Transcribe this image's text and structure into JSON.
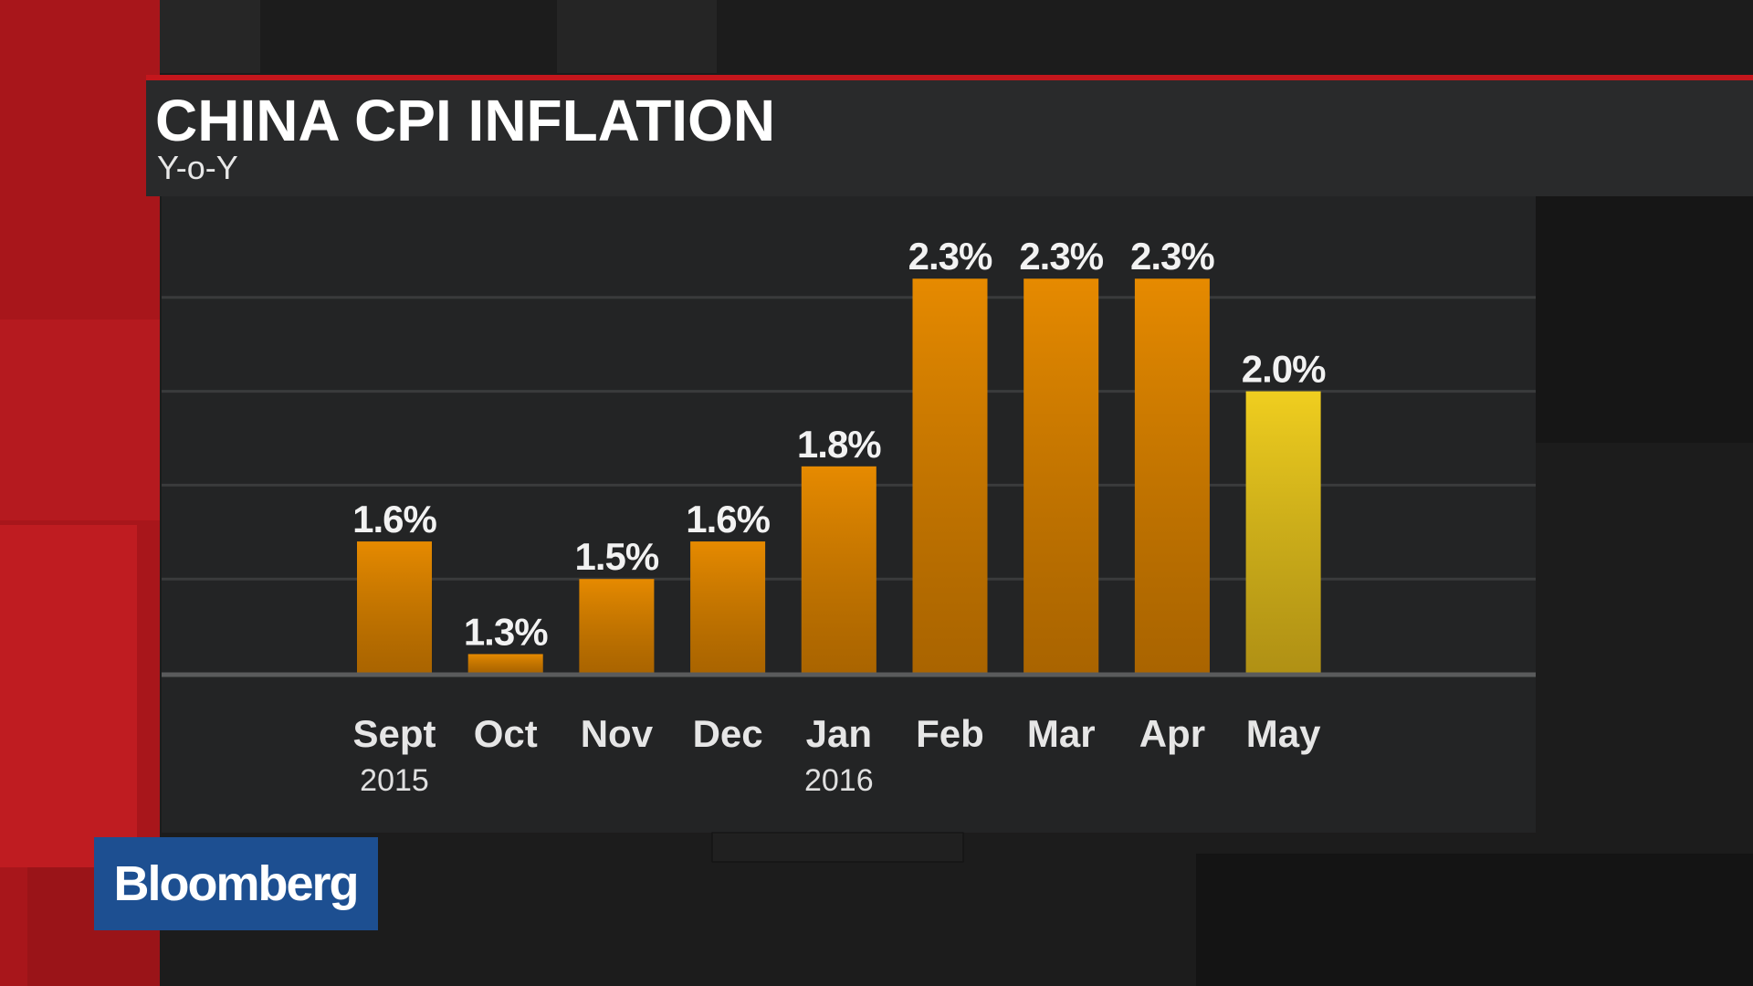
{
  "chart_data": {
    "type": "bar",
    "title": "CHINA CPI INFLATION",
    "subtitle": "Y-o-Y",
    "categories": [
      "Sept",
      "Oct",
      "Nov",
      "Dec",
      "Jan",
      "Feb",
      "Mar",
      "Apr",
      "May"
    ],
    "sublabels": [
      "2015",
      null,
      null,
      null,
      "2016",
      null,
      null,
      null,
      null
    ],
    "values": [
      1.6,
      1.3,
      1.5,
      1.6,
      1.8,
      2.3,
      2.3,
      2.3,
      2.0
    ],
    "value_labels": [
      "1.6%",
      "1.3%",
      "1.5%",
      "1.6%",
      "1.8%",
      "2.3%",
      "2.3%",
      "2.3%",
      "2.0%"
    ],
    "colors": [
      "#e68a00",
      "#e68a00",
      "#e68a00",
      "#e68a00",
      "#e68a00",
      "#e68a00",
      "#e68a00",
      "#e68a00",
      "#f0ce1f"
    ],
    "ylim": [
      1.25,
      2.5
    ],
    "yticks": [
      1.5,
      1.75,
      2.0,
      2.25
    ],
    "grid": true
  },
  "brand": "Bloomberg"
}
